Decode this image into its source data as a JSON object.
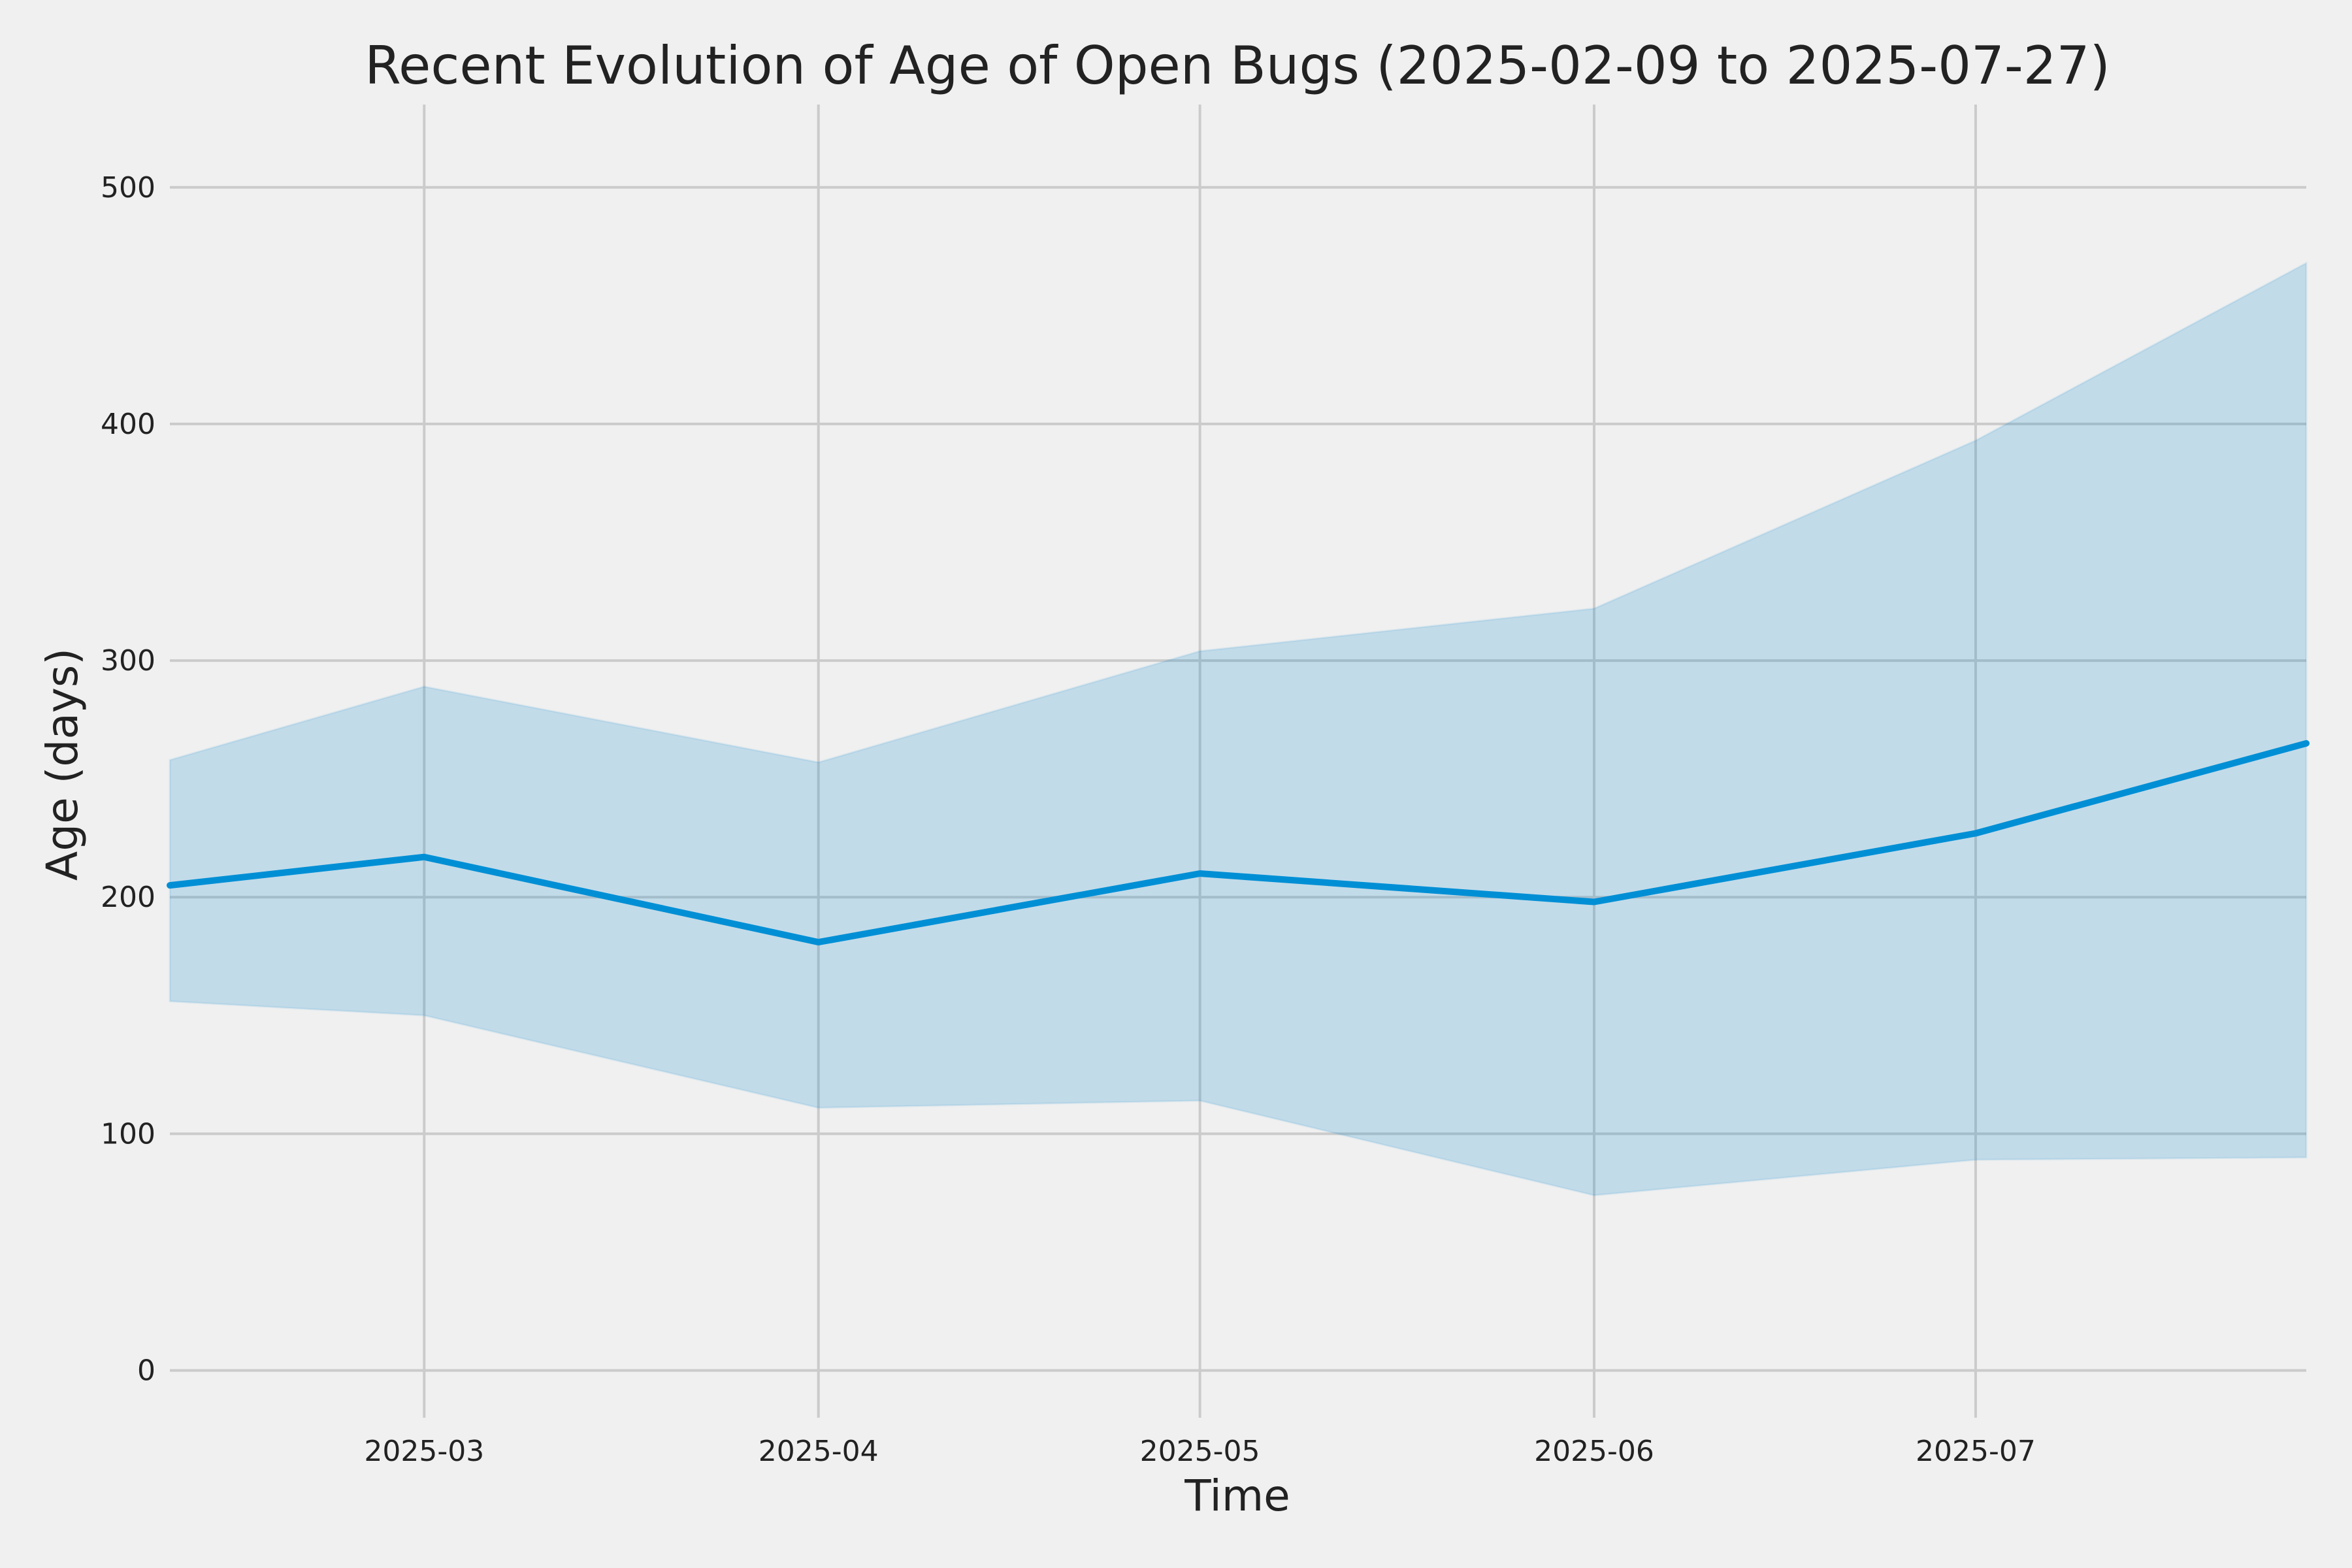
{
  "chart_data": {
    "type": "area",
    "title": "Recent Evolution of Age of Open Bugs (2025-02-09 to 2025-07-27)",
    "xlabel": "Time",
    "ylabel": "Age (days)",
    "x_tick_labels": [
      "2025-03",
      "2025-04",
      "2025-05",
      "2025-06",
      "2025-07"
    ],
    "y_tick_labels": [
      "0",
      "100",
      "200",
      "300",
      "400",
      "500"
    ],
    "ylim": [
      -20,
      535
    ],
    "grid": true,
    "colors": {
      "line": "#008fd5",
      "band": "#0b85cf",
      "background": "#f0f0f0",
      "grid": "#cbcbcb"
    },
    "series": [
      {
        "x": [
          "2025-02-09",
          "2025-03-01",
          "2025-04-01",
          "2025-05-01",
          "2025-06-01",
          "2025-07-01",
          "2025-07-27"
        ],
        "mean": [
          205,
          217,
          181,
          210,
          198,
          227,
          265
        ],
        "upper": [
          258,
          289,
          257,
          304,
          322,
          393,
          468
        ],
        "lower": [
          156,
          150,
          111,
          114,
          74,
          89,
          90
        ]
      }
    ]
  }
}
